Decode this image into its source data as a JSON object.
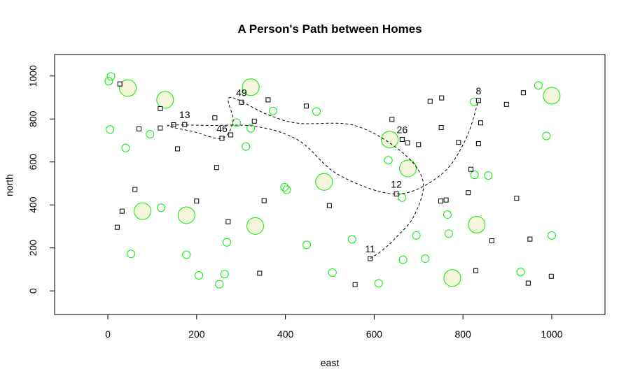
{
  "chart_data": {
    "type": "scatter",
    "title": "A Person's Path between Homes",
    "xlabel": "east",
    "ylabel": "north",
    "xlim": [
      -120,
      1120
    ],
    "ylim": [
      -110,
      1100
    ],
    "xticks": [
      0,
      200,
      400,
      600,
      800,
      1000
    ],
    "yticks": [
      0,
      200,
      400,
      600,
      800,
      1000
    ],
    "xtick_labels": [
      "0",
      "200",
      "400",
      "600",
      "800",
      "1000"
    ],
    "ytick_labels": [
      "0",
      "200",
      "400",
      "600",
      "800",
      "1000"
    ],
    "grid": false,
    "colors": {
      "circle_stroke": "#00ee00",
      "circle_fill": "#f5f5dc",
      "square": "#000000",
      "path": "#000000"
    },
    "homes": [
      {
        "x": 27,
        "y": 963
      },
      {
        "x": 118,
        "y": 848
      },
      {
        "x": 70,
        "y": 754
      },
      {
        "x": 118,
        "y": 758
      },
      {
        "x": 148,
        "y": 773
      },
      {
        "x": 173,
        "y": 774
      },
      {
        "x": 157,
        "y": 661
      },
      {
        "x": 241,
        "y": 805
      },
      {
        "x": 301,
        "y": 878
      },
      {
        "x": 361,
        "y": 889
      },
      {
        "x": 330,
        "y": 790
      },
      {
        "x": 277,
        "y": 726
      },
      {
        "x": 257,
        "y": 710
      },
      {
        "x": 245,
        "y": 574
      },
      {
        "x": 447,
        "y": 860
      },
      {
        "x": 640,
        "y": 798
      },
      {
        "x": 663,
        "y": 705
      },
      {
        "x": 675,
        "y": 689
      },
      {
        "x": 700,
        "y": 681
      },
      {
        "x": 726,
        "y": 882
      },
      {
        "x": 752,
        "y": 898
      },
      {
        "x": 751,
        "y": 760
      },
      {
        "x": 790,
        "y": 691
      },
      {
        "x": 835,
        "y": 886
      },
      {
        "x": 835,
        "y": 685
      },
      {
        "x": 840,
        "y": 782
      },
      {
        "x": 898,
        "y": 868
      },
      {
        "x": 936,
        "y": 922
      },
      {
        "x": 61,
        "y": 472
      },
      {
        "x": 32,
        "y": 371
      },
      {
        "x": 21,
        "y": 296
      },
      {
        "x": 200,
        "y": 418
      },
      {
        "x": 271,
        "y": 322
      },
      {
        "x": 352,
        "y": 420
      },
      {
        "x": 499,
        "y": 397
      },
      {
        "x": 650,
        "y": 451
      },
      {
        "x": 750,
        "y": 418
      },
      {
        "x": 762,
        "y": 423
      },
      {
        "x": 812,
        "y": 457
      },
      {
        "x": 818,
        "y": 566
      },
      {
        "x": 865,
        "y": 233
      },
      {
        "x": 921,
        "y": 431
      },
      {
        "x": 951,
        "y": 241
      },
      {
        "x": 591,
        "y": 150
      },
      {
        "x": 557,
        "y": 29
      },
      {
        "x": 342,
        "y": 82
      },
      {
        "x": 829,
        "y": 94
      },
      {
        "x": 947,
        "y": 36
      },
      {
        "x": 999,
        "y": 68
      }
    ],
    "sites": [
      {
        "x": 7,
        "y": 998,
        "size": 1
      },
      {
        "x": 2,
        "y": 976,
        "size": 1
      },
      {
        "x": 45,
        "y": 944,
        "size": 3
      },
      {
        "x": 129,
        "y": 889,
        "size": 3
      },
      {
        "x": 322,
        "y": 948,
        "size": 3
      },
      {
        "x": 5,
        "y": 751,
        "size": 1
      },
      {
        "x": 40,
        "y": 665,
        "size": 1
      },
      {
        "x": 95,
        "y": 729,
        "size": 1
      },
      {
        "x": 290,
        "y": 783,
        "size": 1
      },
      {
        "x": 322,
        "y": 757,
        "size": 1
      },
      {
        "x": 372,
        "y": 837,
        "size": 1
      },
      {
        "x": 311,
        "y": 672,
        "size": 1
      },
      {
        "x": 470,
        "y": 835,
        "size": 1
      },
      {
        "x": 635,
        "y": 704,
        "size": 3
      },
      {
        "x": 632,
        "y": 608,
        "size": 1
      },
      {
        "x": 676,
        "y": 570,
        "size": 3
      },
      {
        "x": 825,
        "y": 880,
        "size": 1
      },
      {
        "x": 970,
        "y": 956,
        "size": 1
      },
      {
        "x": 1000,
        "y": 908,
        "size": 3
      },
      {
        "x": 988,
        "y": 721,
        "size": 1
      },
      {
        "x": 826,
        "y": 540,
        "size": 1
      },
      {
        "x": 857,
        "y": 537,
        "size": 1
      },
      {
        "x": 487,
        "y": 507,
        "size": 3
      },
      {
        "x": 398,
        "y": 483,
        "size": 1
      },
      {
        "x": 403,
        "y": 470,
        "size": 1
      },
      {
        "x": 663,
        "y": 434,
        "size": 1
      },
      {
        "x": 120,
        "y": 387,
        "size": 1
      },
      {
        "x": 78,
        "y": 371,
        "size": 3
      },
      {
        "x": 177,
        "y": 352,
        "size": 3
      },
      {
        "x": 332,
        "y": 302,
        "size": 3
      },
      {
        "x": 268,
        "y": 226,
        "size": 1
      },
      {
        "x": 52,
        "y": 172,
        "size": 1
      },
      {
        "x": 177,
        "y": 168,
        "size": 1
      },
      {
        "x": 448,
        "y": 214,
        "size": 1
      },
      {
        "x": 550,
        "y": 240,
        "size": 1
      },
      {
        "x": 695,
        "y": 258,
        "size": 1
      },
      {
        "x": 765,
        "y": 355,
        "size": 1
      },
      {
        "x": 768,
        "y": 266,
        "size": 1
      },
      {
        "x": 831,
        "y": 308,
        "size": 3
      },
      {
        "x": 1000,
        "y": 258,
        "size": 1
      },
      {
        "x": 665,
        "y": 145,
        "size": 1
      },
      {
        "x": 715,
        "y": 150,
        "size": 1
      },
      {
        "x": 205,
        "y": 72,
        "size": 1
      },
      {
        "x": 263,
        "y": 78,
        "size": 1
      },
      {
        "x": 251,
        "y": 31,
        "size": 1
      },
      {
        "x": 506,
        "y": 85,
        "size": 1
      },
      {
        "x": 610,
        "y": 35,
        "size": 1
      },
      {
        "x": 776,
        "y": 60,
        "size": 3
      },
      {
        "x": 930,
        "y": 88,
        "size": 1
      }
    ],
    "labeled_homes": [
      {
        "label": "13",
        "x": 173,
        "y": 774
      },
      {
        "label": "49",
        "x": 301,
        "y": 878
      },
      {
        "label": "46",
        "x": 257,
        "y": 710
      },
      {
        "label": "26",
        "x": 663,
        "y": 705
      },
      {
        "label": "8",
        "x": 835,
        "y": 886
      },
      {
        "label": "12",
        "x": 650,
        "y": 451
      },
      {
        "label": "11",
        "x": 591,
        "y": 150
      }
    ],
    "path": [
      {
        "x": 591,
        "y": 150
      },
      {
        "x": 619,
        "y": 190
      },
      {
        "x": 650,
        "y": 250
      },
      {
        "x": 690,
        "y": 350
      },
      {
        "x": 710,
        "y": 510
      },
      {
        "x": 660,
        "y": 650
      },
      {
        "x": 555,
        "y": 770
      },
      {
        "x": 430,
        "y": 780
      },
      {
        "x": 360,
        "y": 820
      },
      {
        "x": 275,
        "y": 900
      },
      {
        "x": 282,
        "y": 790
      },
      {
        "x": 257,
        "y": 710
      },
      {
        "x": 195,
        "y": 740
      },
      {
        "x": 135,
        "y": 770
      },
      {
        "x": 230,
        "y": 770
      },
      {
        "x": 335,
        "y": 765
      },
      {
        "x": 430,
        "y": 700
      },
      {
        "x": 520,
        "y": 540
      },
      {
        "x": 650,
        "y": 451
      },
      {
        "x": 750,
        "y": 540
      },
      {
        "x": 805,
        "y": 700
      },
      {
        "x": 835,
        "y": 886
      }
    ]
  }
}
